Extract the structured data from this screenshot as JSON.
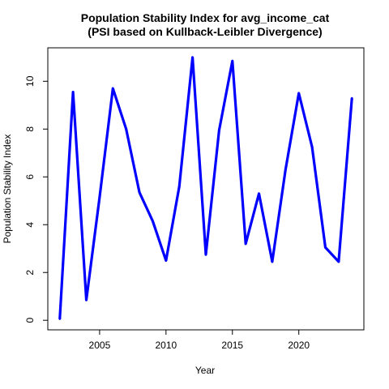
{
  "chart_data": {
    "type": "line",
    "title": "Population Stability Index for avg_income_cat",
    "subtitle": "(PSI based on Kullback-Leibler Divergence)",
    "xlabel": "Year",
    "ylabel": "Population Stability Index",
    "xlim": [
      2001.1,
      2024.9
    ],
    "ylim": [
      -0.4,
      11.4
    ],
    "xticks": [
      2005,
      2010,
      2015,
      2020
    ],
    "yticks": [
      0,
      2,
      4,
      6,
      8,
      10
    ],
    "grid": false,
    "series": [
      {
        "color": "#0000ff",
        "x": [
          2002,
          2003,
          2004,
          2005,
          2006,
          2007,
          2008,
          2009,
          2010,
          2011,
          2012,
          2013,
          2014,
          2015,
          2016,
          2017,
          2018,
          2019,
          2020,
          2021,
          2022,
          2023,
          2024
        ],
        "y": [
          0.05,
          9.55,
          0.85,
          5.15,
          9.7,
          8.0,
          5.35,
          4.15,
          2.5,
          5.6,
          11.0,
          2.75,
          7.95,
          10.85,
          3.2,
          5.3,
          2.45,
          6.3,
          9.5,
          7.25,
          3.05,
          2.45,
          9.3
        ]
      }
    ]
  }
}
